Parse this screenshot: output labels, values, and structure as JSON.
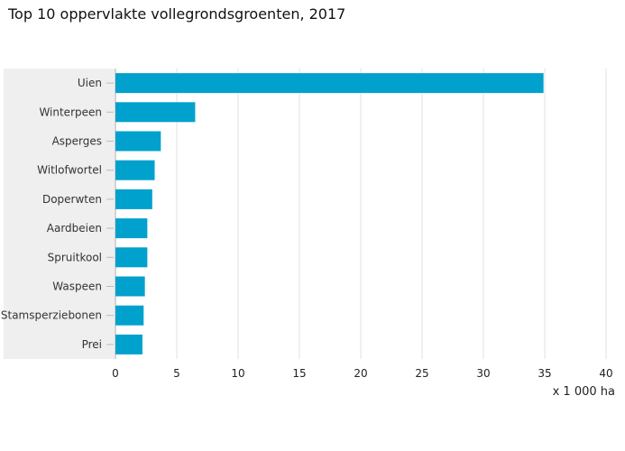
{
  "title": "Top 10 oppervlakte vollegrondsgroenten, 2017",
  "chart_data": {
    "type": "bar",
    "orientation": "horizontal",
    "title": "Top 10 oppervlakte vollegrondsgroenten, 2017",
    "xlabel": "x 1 000 ha",
    "ylabel": "",
    "categories": [
      "Uien",
      "Winterpeen",
      "Asperges",
      "Witlofwortel",
      "Doperwten",
      "Aardbeien",
      "Spruitkool",
      "Waspeen",
      "Stamsperziebonen",
      "Prei"
    ],
    "values": [
      34.9,
      6.5,
      3.7,
      3.2,
      3.0,
      2.6,
      2.6,
      2.4,
      2.3,
      2.2
    ],
    "xlim": [
      0,
      40
    ],
    "xticks": [
      "0",
      "5",
      "10",
      "15",
      "20",
      "25",
      "30",
      "35",
      "40"
    ],
    "grid": true,
    "bar_color": "#00a1cd",
    "label_bg_color": "#efefef"
  }
}
